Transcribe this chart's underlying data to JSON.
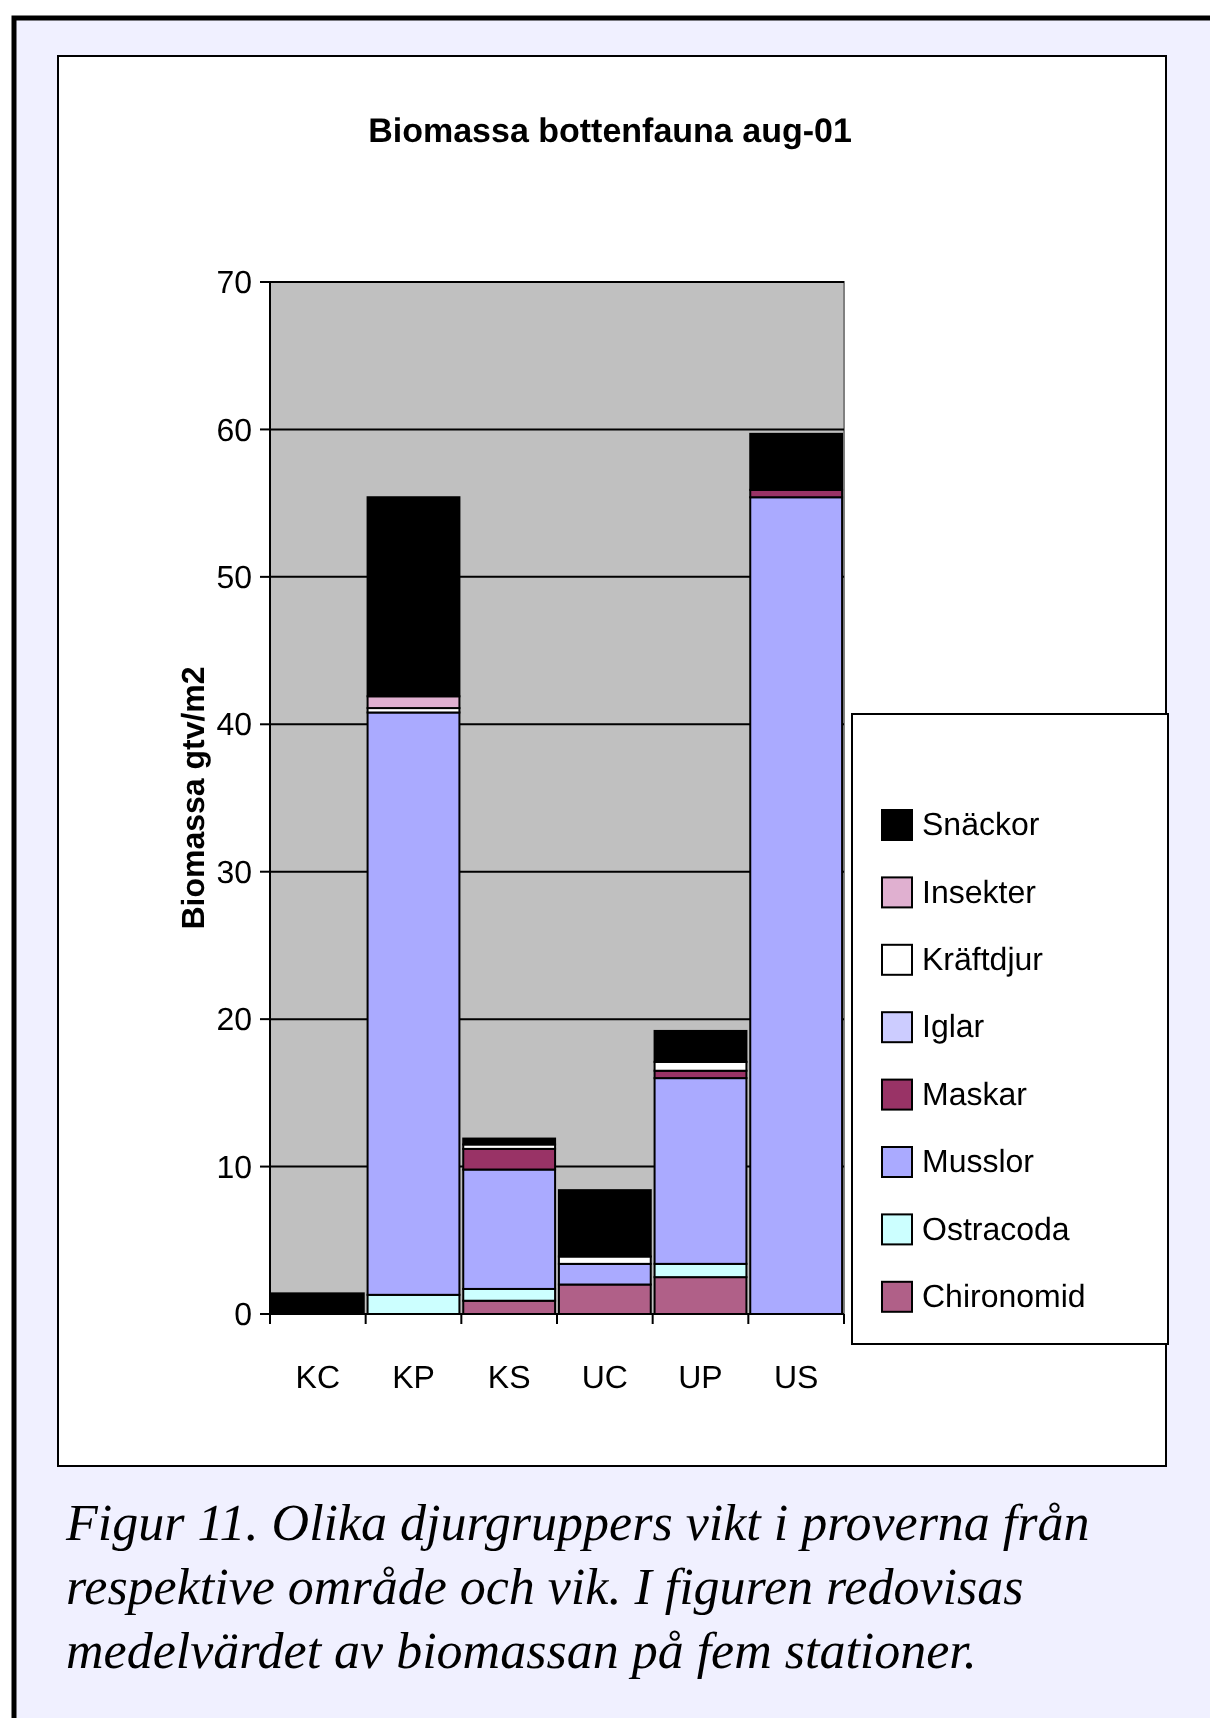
{
  "chart_data": {
    "type": "bar",
    "title": "Biomassa bottenfauna aug-01",
    "ylabel": "Biomassa gtv/m2",
    "categories": [
      "KC",
      "KP",
      "KS",
      "UC",
      "UP",
      "US"
    ],
    "stacked": true,
    "series": [
      {
        "name": "Chironomid",
        "color": "#b06088",
        "values": [
          null,
          null,
          0.9,
          2.0,
          2.5,
          null
        ]
      },
      {
        "name": "Ostracoda",
        "color": "#ccffff",
        "values": [
          null,
          1.3,
          0.8,
          null,
          0.9,
          null
        ]
      },
      {
        "name": "Musslor",
        "color": "#aaaaff",
        "values": [
          null,
          39.5,
          8.1,
          1.4,
          12.6,
          55.4
        ]
      },
      {
        "name": "Maskar",
        "color": "#993366",
        "values": [
          null,
          null,
          1.4,
          null,
          0.5,
          0.5
        ]
      },
      {
        "name": "Iglar",
        "color": "#ccccff",
        "values": [
          null,
          null,
          null,
          null,
          null,
          null
        ]
      },
      {
        "name": "Kräftdjur",
        "color": "#ffffff",
        "values": [
          null,
          0.3,
          0.3,
          0.5,
          0.6,
          null
        ]
      },
      {
        "name": "Insekter",
        "color": "#e0b0d0",
        "values": [
          null,
          0.8,
          null,
          null,
          null,
          null
        ]
      },
      {
        "name": "Snäckor",
        "color": "#000000",
        "values": [
          1.4,
          13.5,
          0.4,
          4.5,
          2.1,
          3.8
        ]
      }
    ],
    "ylim": [
      0,
      70
    ],
    "yticks": [
      0,
      10,
      20,
      30,
      40,
      50,
      60,
      70
    ],
    "grid": "y",
    "legend": "right",
    "annotations": [
      "Figur 11. Olika djurgruppers vikt i proverna från respektive område och vik. I figuren redovisas medelvärdet av biomassan på fem stationer."
    ]
  }
}
